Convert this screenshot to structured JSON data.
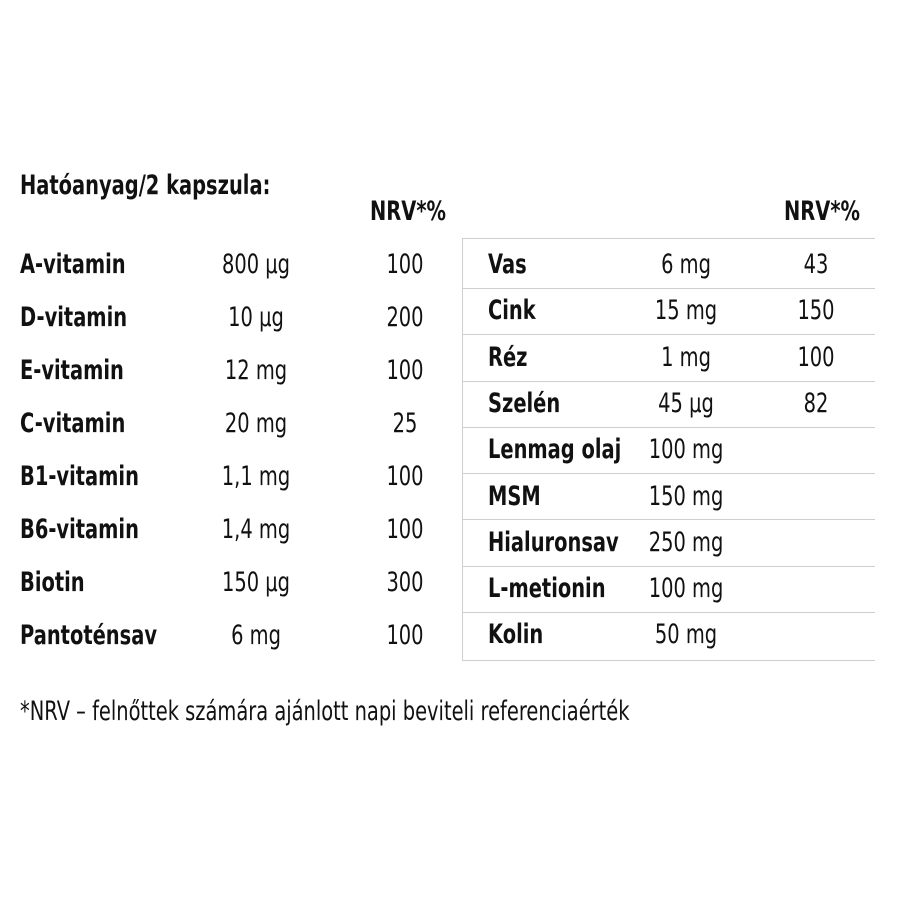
{
  "title": "Hatóanyag/2 kapszula:",
  "left_table": {
    "header": "NRV*%",
    "rows": [
      [
        "A-vitamin",
        "800 µg",
        100
      ],
      [
        "D-vitamin",
        "10 µg",
        200
      ],
      [
        "E-vitamin",
        "12 mg",
        100
      ],
      [
        "C-vitamin",
        "20 mg",
        25
      ],
      [
        "B1-vitamin",
        "1,1 mg",
        100
      ],
      [
        "B6-vitamin",
        "1,4 mg",
        100
      ],
      [
        "Biotin",
        "150 µg",
        300
      ],
      [
        "Pantoténsav",
        "6 mg",
        100
      ]
    ]
  },
  "right_table": {
    "header": "NRV*%",
    "rows": [
      [
        "Vas",
        "6 mg",
        43
      ],
      [
        "Cink",
        "15 mg",
        150
      ],
      [
        "Réz",
        "1 mg",
        100
      ],
      [
        "Szelén",
        "45 µg",
        82
      ],
      [
        "Lenmag olaj",
        "100 mg"
      ],
      [
        "MSM",
        "150 mg"
      ],
      [
        "Hialuronsav",
        "250 mg"
      ],
      [
        "L-metionin",
        "100 mg"
      ],
      [
        "Kolin",
        "50 mg"
      ]
    ]
  },
  "footnote": "*NRV – felnőttek számára ajánlott napi beviteli referenciaérték"
}
